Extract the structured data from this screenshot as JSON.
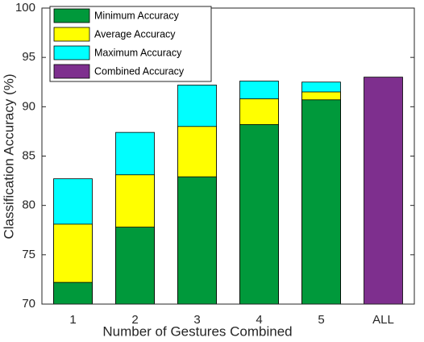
{
  "chart_data": {
    "type": "bar",
    "x_label": "Number of Gestures Combined",
    "y_label": "Classification Accuracy (%)",
    "categories": [
      "1",
      "2",
      "3",
      "4",
      "5",
      "ALL"
    ],
    "series": [
      {
        "name": "Minimum Accuracy",
        "color": "#00993b",
        "values": [
          72.2,
          77.8,
          82.9,
          88.2,
          90.7,
          null
        ]
      },
      {
        "name": "Average Accuracy",
        "color": "#ffff00",
        "values": [
          78.1,
          83.1,
          88.0,
          90.8,
          91.5,
          null
        ]
      },
      {
        "name": "Maximum Accuracy",
        "color": "#00ffff",
        "values": [
          82.7,
          87.4,
          92.2,
          92.6,
          92.5,
          null
        ]
      },
      {
        "name": "Combined Accuracy",
        "color": "#7e2f8e",
        "values": [
          null,
          null,
          null,
          null,
          null,
          93.0
        ]
      }
    ],
    "ylim": [
      70,
      100
    ],
    "yticks": [
      70,
      75,
      80,
      85,
      90,
      95,
      100
    ],
    "legend": "upper left",
    "grid": false
  }
}
